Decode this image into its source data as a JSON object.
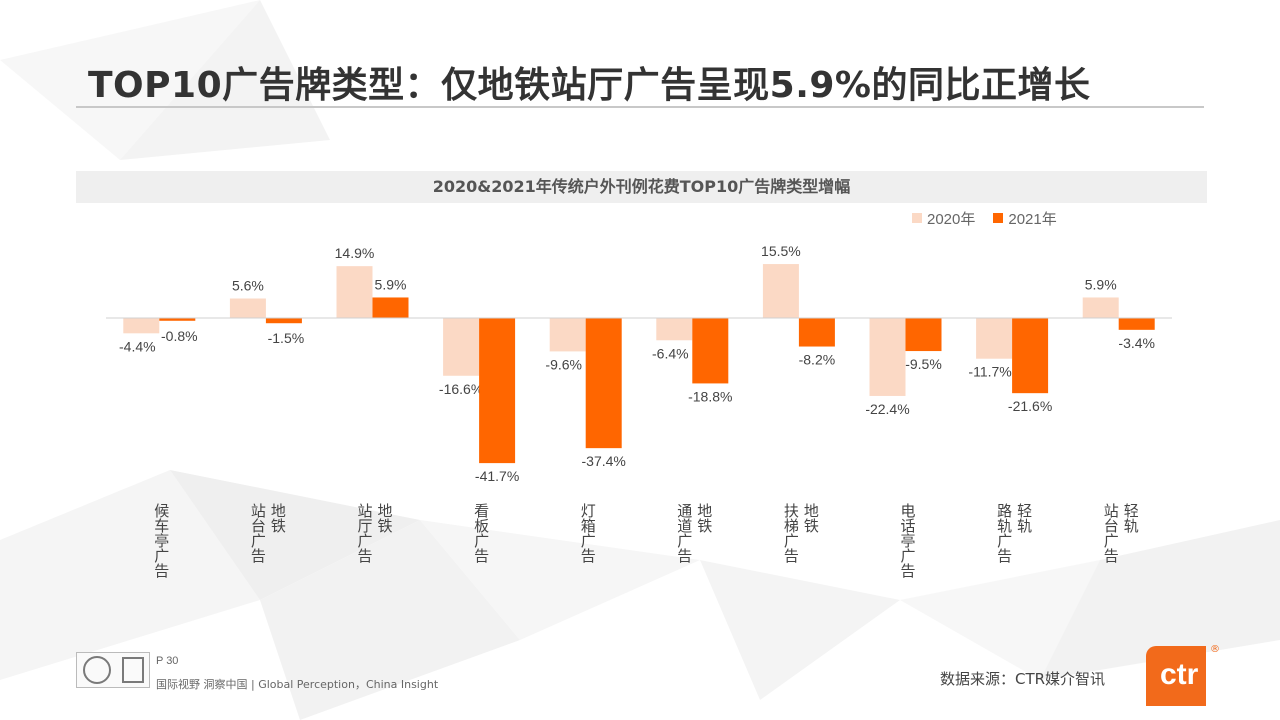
{
  "slide": {
    "title": "TOP10广告牌类型：仅地铁站厅广告呈现5.9%的同比正增长"
  },
  "footer": {
    "page": "P 30",
    "slogan": "国际视野  洞察中国 |  Global Perception，China Insight",
    "source": "数据来源：CTR媒介智讯",
    "logo_text": "ctr",
    "logo_mark": "®"
  },
  "colors": {
    "series_2020": "#fbd9c5",
    "series_2021": "#ff6600",
    "brand": "#f26a1b"
  },
  "chart_data": {
    "type": "bar",
    "title": "2020&2021年传统户外刊例花费TOP10广告牌类型增幅",
    "categories": [
      "候车亭广告",
      "站台广告 地铁",
      "站厅广告 地铁",
      "看板广告",
      "灯箱广告",
      "通道广告 地铁",
      "扶梯广告 地铁",
      "电话亭广告",
      "路轨广告 轻轨",
      "站台广告 轻轨"
    ],
    "series": [
      {
        "name": "2020年",
        "values": [
          -4.4,
          5.6,
          14.9,
          -16.6,
          -9.6,
          -6.4,
          15.5,
          -22.4,
          -11.7,
          5.9
        ]
      },
      {
        "name": "2021年",
        "values": [
          -0.8,
          -1.5,
          5.9,
          -41.7,
          -37.4,
          -18.8,
          -8.2,
          -9.5,
          -21.6,
          -3.4
        ]
      }
    ],
    "value_suffix": "%",
    "legend_position": "top-right",
    "grid": false
  }
}
